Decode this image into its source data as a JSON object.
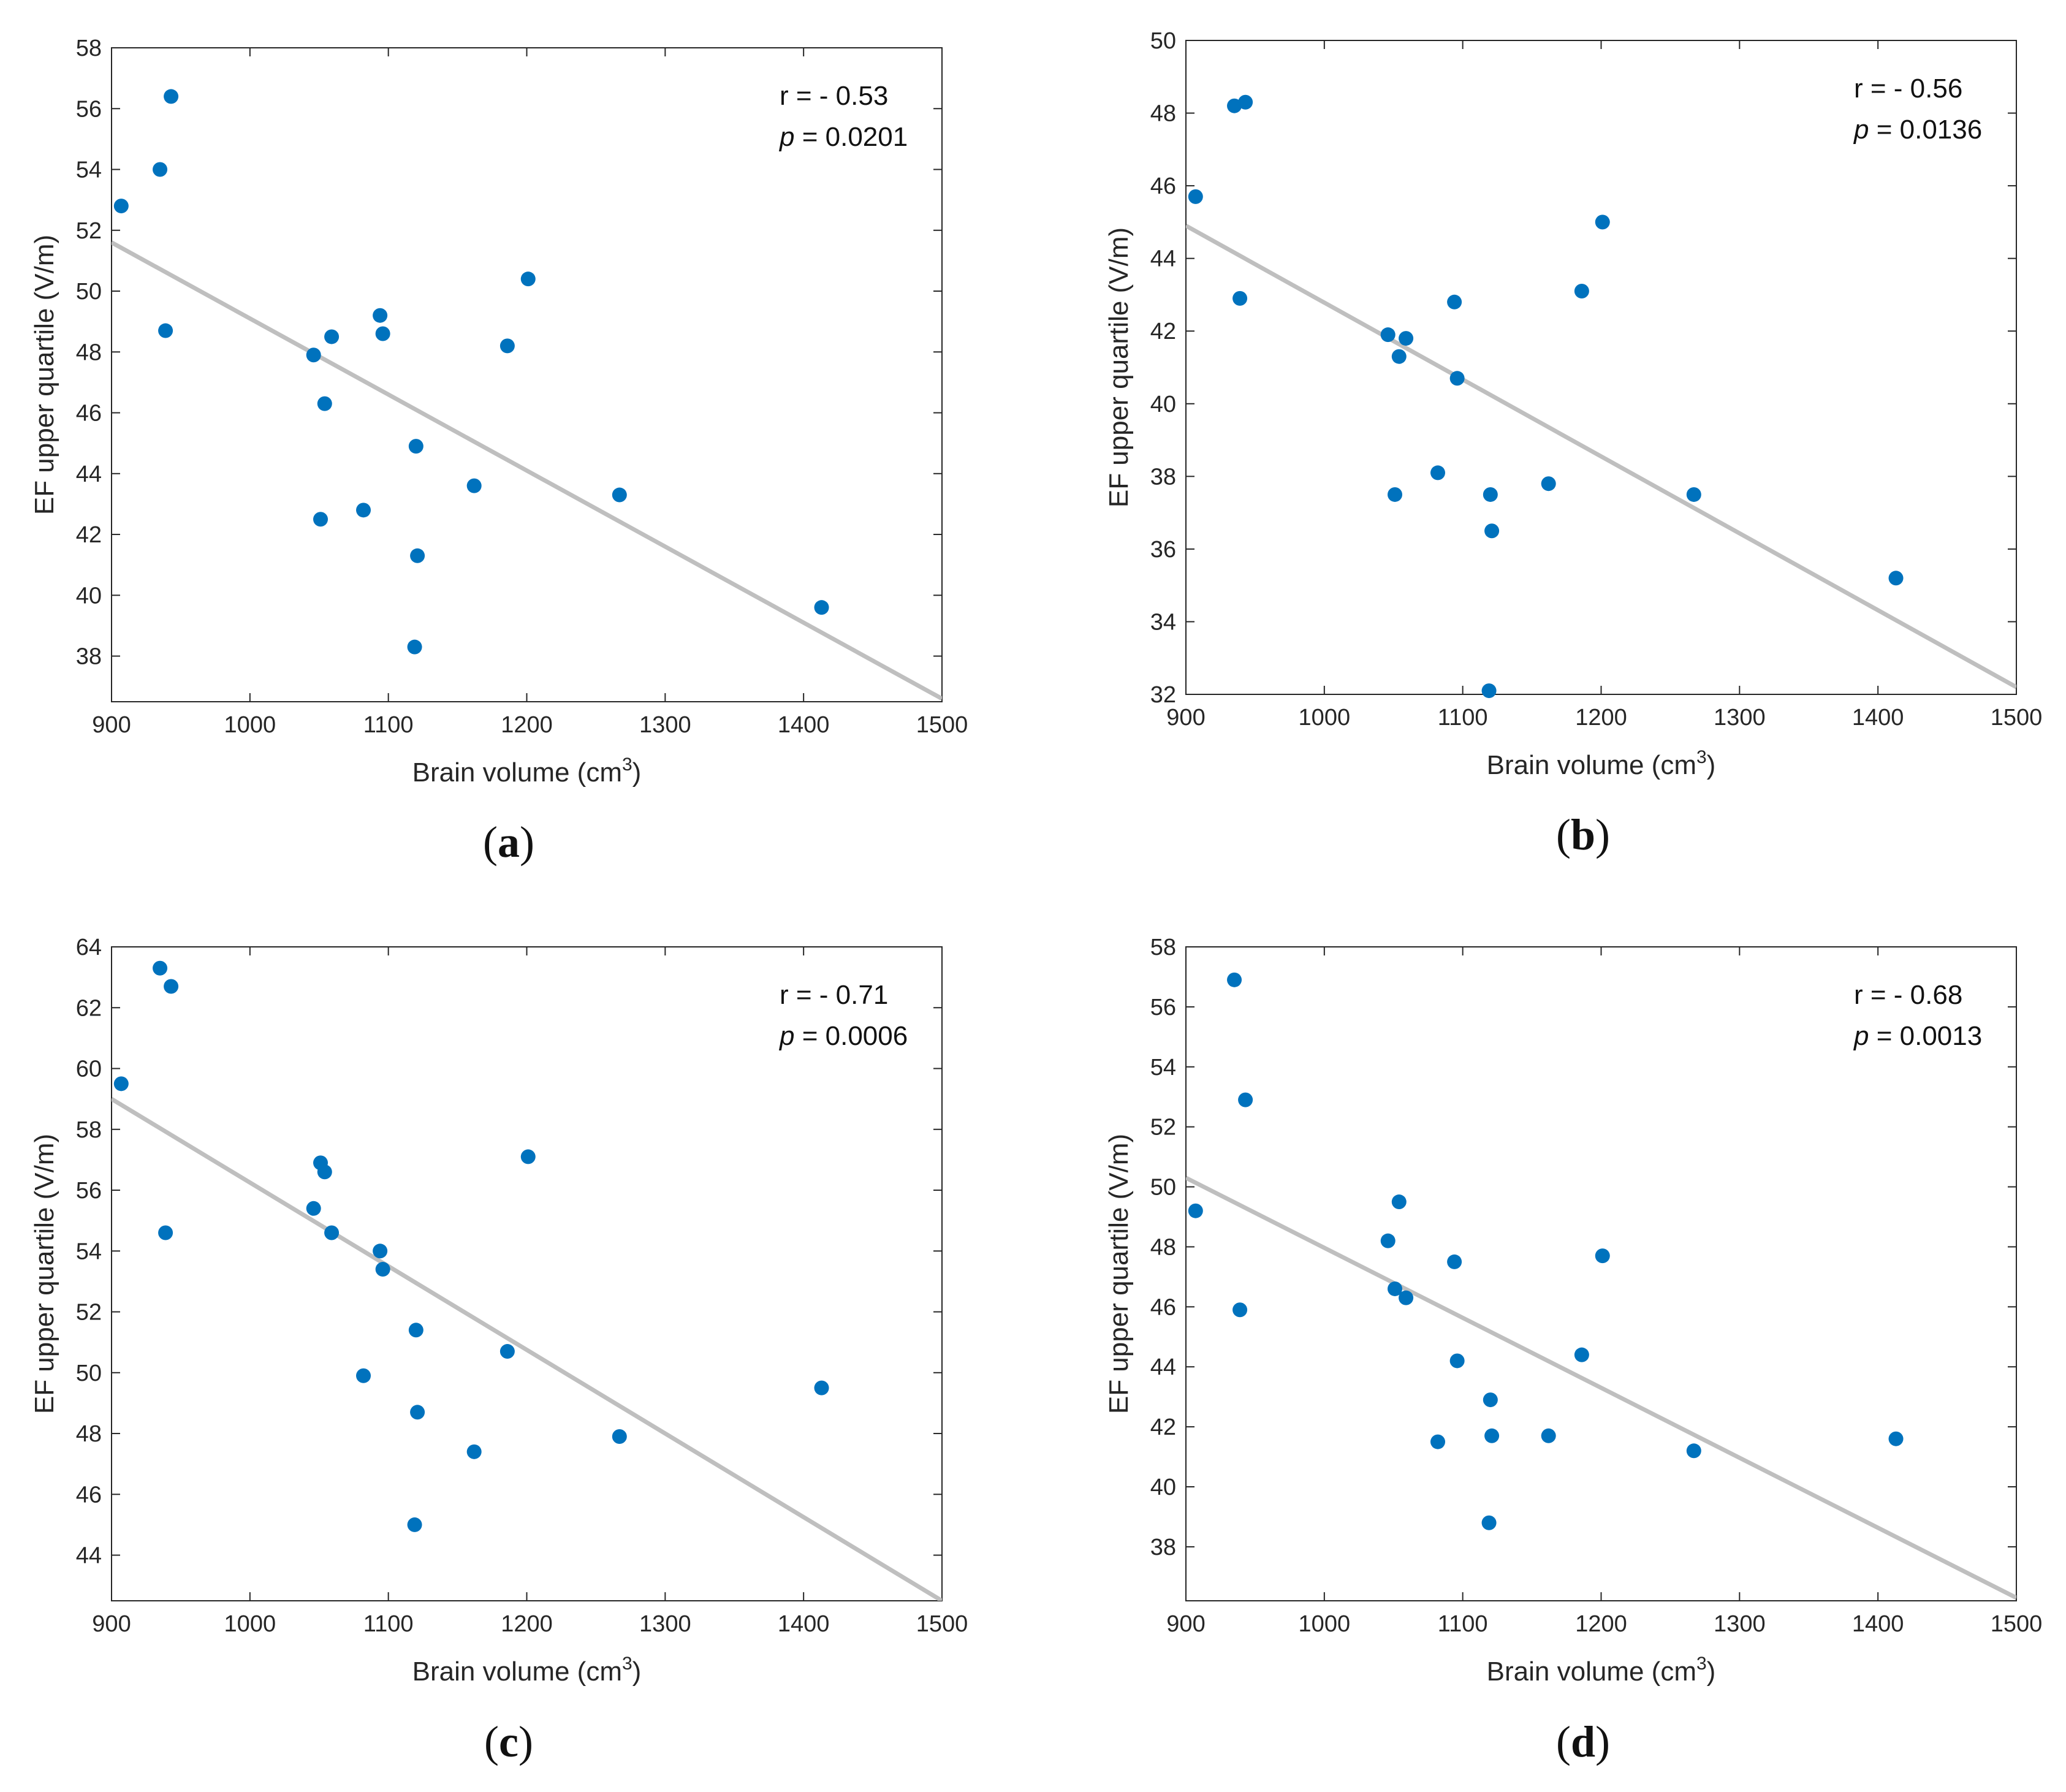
{
  "figure_colors": {
    "points": "#0072BD",
    "fit_line": "#BFBFBF",
    "axes": "#262626"
  },
  "chart_data": [
    {
      "type": "scatter",
      "panel_label": "a",
      "xlabel": "Brain volume (cm",
      "xlabel_sup": "3",
      "xlabel_close": ")",
      "ylabel": "EF upper quartile (V/m)",
      "xlim": [
        900,
        1500
      ],
      "ylim": [
        36.5,
        58
      ],
      "xticks": [
        900,
        1000,
        1100,
        1200,
        1300,
        1400,
        1500
      ],
      "yticks": [
        38,
        40,
        42,
        44,
        46,
        48,
        50,
        52,
        54,
        56,
        58
      ],
      "r_text": "r = - 0.53",
      "p_label": "p",
      "p_text": " = 0.0201",
      "fit_line": [
        [
          900,
          51.6
        ],
        [
          1500,
          36.6
        ]
      ],
      "points": [
        [
          907,
          52.8
        ],
        [
          935,
          54.0
        ],
        [
          943,
          56.4
        ],
        [
          939,
          48.7
        ],
        [
          1046,
          47.9
        ],
        [
          1054,
          46.3
        ],
        [
          1059,
          48.5
        ],
        [
          1051,
          42.5
        ],
        [
          1082,
          42.8
        ],
        [
          1094,
          49.2
        ],
        [
          1096,
          48.6
        ],
        [
          1120,
          44.9
        ],
        [
          1121,
          41.3
        ],
        [
          1119,
          38.3
        ],
        [
          1162,
          43.6
        ],
        [
          1186,
          48.2
        ],
        [
          1201,
          50.4
        ],
        [
          1267,
          43.3
        ],
        [
          1413,
          39.6
        ]
      ]
    },
    {
      "type": "scatter",
      "panel_label": "b",
      "xlabel": "Brain volume (cm",
      "xlabel_sup": "3",
      "xlabel_close": ")",
      "ylabel": "EF upper quartile (V/m)",
      "xlim": [
        900,
        1500
      ],
      "ylim": [
        32,
        50
      ],
      "xticks": [
        900,
        1000,
        1100,
        1200,
        1300,
        1400,
        1500
      ],
      "yticks": [
        32,
        34,
        36,
        38,
        40,
        42,
        44,
        46,
        48,
        50
      ],
      "r_text": "r = - 0.56",
      "p_label": "p",
      "p_text": " = 0.0136",
      "fit_line": [
        [
          900,
          44.9
        ],
        [
          1500,
          32.2
        ]
      ],
      "points": [
        [
          907,
          45.7
        ],
        [
          935,
          48.2
        ],
        [
          943,
          48.3
        ],
        [
          939,
          42.9
        ],
        [
          1046,
          41.9
        ],
        [
          1054,
          41.3
        ],
        [
          1059,
          41.8
        ],
        [
          1051,
          37.5
        ],
        [
          1082,
          38.1
        ],
        [
          1094,
          42.8
        ],
        [
          1096,
          40.7
        ],
        [
          1120,
          37.5
        ],
        [
          1121,
          36.5
        ],
        [
          1119,
          32.1
        ],
        [
          1162,
          37.8
        ],
        [
          1186,
          43.1
        ],
        [
          1201,
          45.0
        ],
        [
          1267,
          37.5
        ],
        [
          1413,
          35.2
        ]
      ]
    },
    {
      "type": "scatter",
      "panel_label": "c",
      "xlabel": "Brain volume (cm",
      "xlabel_sup": "3",
      "xlabel_close": ")",
      "ylabel": "EF upper quartile (V/m)",
      "xlim": [
        900,
        1500
      ],
      "ylim": [
        42.5,
        64
      ],
      "xticks": [
        900,
        1000,
        1100,
        1200,
        1300,
        1400,
        1500
      ],
      "yticks": [
        44,
        46,
        48,
        50,
        52,
        54,
        56,
        58,
        60,
        62,
        64
      ],
      "r_text": "r = - 0.71",
      "p_label": "p",
      "p_text": " = 0.0006",
      "fit_line": [
        [
          900,
          59.0
        ],
        [
          1500,
          42.5
        ]
      ],
      "points": [
        [
          907,
          59.5
        ],
        [
          935,
          63.3
        ],
        [
          943,
          62.7
        ],
        [
          939,
          54.6
        ],
        [
          1046,
          55.4
        ],
        [
          1051,
          56.9
        ],
        [
          1054,
          56.6
        ],
        [
          1059,
          54.6
        ],
        [
          1082,
          49.9
        ],
        [
          1094,
          54.0
        ],
        [
          1096,
          53.4
        ],
        [
          1120,
          51.4
        ],
        [
          1121,
          48.7
        ],
        [
          1119,
          45.0
        ],
        [
          1162,
          47.4
        ],
        [
          1186,
          50.7
        ],
        [
          1201,
          57.1
        ],
        [
          1267,
          47.9
        ],
        [
          1413,
          49.5
        ]
      ]
    },
    {
      "type": "scatter",
      "panel_label": "d",
      "xlabel": "Brain volume (cm",
      "xlabel_sup": "3",
      "xlabel_close": ")",
      "ylabel": "EF upper quartile (V/m)",
      "xlim": [
        900,
        1500
      ],
      "ylim": [
        36.2,
        58
      ],
      "xticks": [
        900,
        1000,
        1100,
        1200,
        1300,
        1400,
        1500
      ],
      "yticks": [
        38,
        40,
        42,
        44,
        46,
        48,
        50,
        52,
        54,
        56,
        58
      ],
      "r_text": "r = - 0.68",
      "p_label": "p",
      "p_text": " = 0.0013",
      "fit_line": [
        [
          900,
          50.3
        ],
        [
          1500,
          36.3
        ]
      ],
      "points": [
        [
          907,
          49.2
        ],
        [
          935,
          56.9
        ],
        [
          943,
          52.9
        ],
        [
          939,
          45.9
        ],
        [
          1046,
          48.2
        ],
        [
          1051,
          46.6
        ],
        [
          1054,
          49.5
        ],
        [
          1059,
          46.3
        ],
        [
          1082,
          41.5
        ],
        [
          1094,
          47.5
        ],
        [
          1096,
          44.2
        ],
        [
          1120,
          42.9
        ],
        [
          1121,
          41.7
        ],
        [
          1119,
          38.8
        ],
        [
          1162,
          41.7
        ],
        [
          1186,
          44.4
        ],
        [
          1201,
          47.7
        ],
        [
          1267,
          41.2
        ],
        [
          1413,
          41.6
        ]
      ]
    }
  ]
}
